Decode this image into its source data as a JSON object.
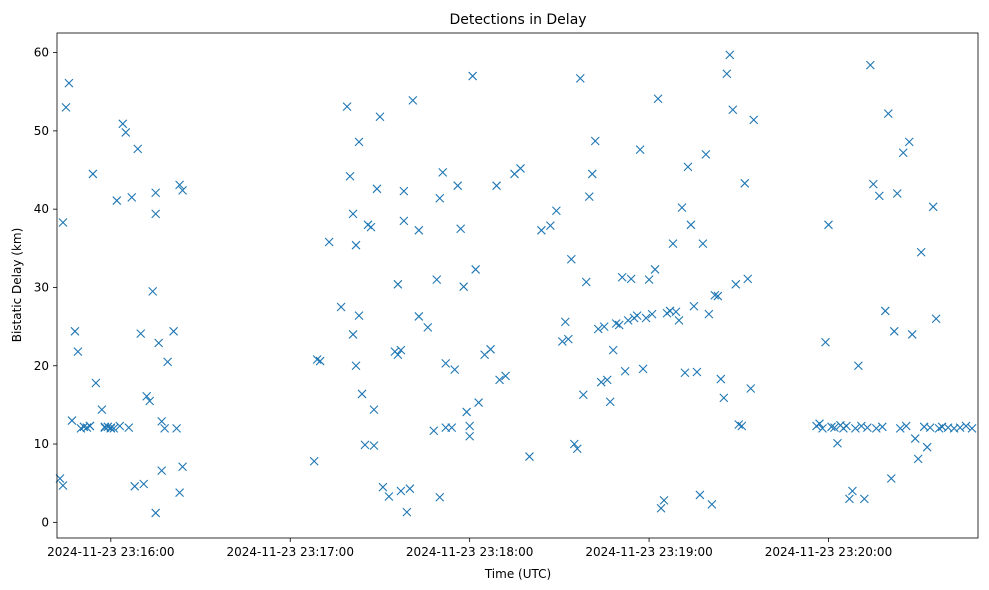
{
  "chart_data": {
    "type": "scatter",
    "title": "Detections in Delay",
    "xlabel": "Time (UTC)",
    "ylabel": "Bistatic Delay (km)",
    "x_ticks": [
      "2024-11-23 23:16:00",
      "2024-11-23 23:17:00",
      "2024-11-23 23:18:00",
      "2024-11-23 23:19:00",
      "2024-11-23 23:20:00"
    ],
    "y_ticks": [
      0,
      10,
      20,
      30,
      40,
      50,
      60
    ],
    "xlim": [
      "2024-11-23 23:15:42",
      "2024-11-23 23:20:50"
    ],
    "ylim": [
      -2,
      62.5
    ],
    "grid": false,
    "marker": "x",
    "color": "#1f77b4",
    "series": [
      {
        "x": [
          "2024-11-23 23:15:43",
          "2024-11-23 23:15:44",
          "2024-11-23 23:15:44",
          "2024-11-23 23:15:45",
          "2024-11-23 23:15:46",
          "2024-11-23 23:15:47",
          "2024-11-23 23:15:48",
          "2024-11-23 23:15:49",
          "2024-11-23 23:15:50",
          "2024-11-23 23:15:51",
          "2024-11-23 23:15:52",
          "2024-11-23 23:15:53",
          "2024-11-23 23:15:53",
          "2024-11-23 23:15:54",
          "2024-11-23 23:15:55",
          "2024-11-23 23:15:57",
          "2024-11-23 23:15:58",
          "2024-11-23 23:15:58",
          "2024-11-23 23:15:59",
          "2024-11-23 23:16:00",
          "2024-11-23 23:16:00",
          "2024-11-23 23:16:01",
          "2024-11-23 23:16:02",
          "2024-11-23 23:16:03",
          "2024-11-23 23:16:04",
          "2024-11-23 23:16:05",
          "2024-11-23 23:16:06",
          "2024-11-23 23:16:07",
          "2024-11-23 23:16:08",
          "2024-11-23 23:16:09",
          "2024-11-23 23:16:10",
          "2024-11-23 23:16:11",
          "2024-11-23 23:16:12",
          "2024-11-23 23:16:13",
          "2024-11-23 23:16:14",
          "2024-11-23 23:16:15",
          "2024-11-23 23:16:15",
          "2024-11-23 23:16:15",
          "2024-11-23 23:16:16",
          "2024-11-23 23:16:17",
          "2024-11-23 23:16:17",
          "2024-11-23 23:16:18",
          "2024-11-23 23:16:19",
          "2024-11-23 23:16:21",
          "2024-11-23 23:16:22",
          "2024-11-23 23:16:23",
          "2024-11-23 23:16:23",
          "2024-11-23 23:16:24",
          "2024-11-23 23:16:24"
        ],
        "y": [
          5.6,
          38.3,
          4.7,
          53.0,
          56.1,
          13.0,
          24.4,
          21.8,
          12.0,
          12.2,
          12.1,
          12.3,
          12.3,
          44.5,
          17.8,
          14.4,
          12.2,
          12.1,
          12.2,
          12.1,
          12.0,
          12.0,
          41.1,
          12.3,
          50.9,
          49.8,
          12.1,
          41.5,
          4.6,
          47.7,
          24.1,
          4.9,
          16.1,
          15.5,
          29.5,
          1.2,
          42.1,
          39.4,
          22.9,
          12.9,
          6.6,
          12.0,
          20.5,
          24.4,
          12.0,
          43.1,
          3.8,
          7.1,
          42.4
        ]
      },
      {
        "x": [
          "2024-11-23 23:17:08",
          "2024-11-23 23:17:09",
          "2024-11-23 23:17:10",
          "2024-11-23 23:17:13",
          "2024-11-23 23:17:17",
          "2024-11-23 23:17:19",
          "2024-11-23 23:17:20",
          "2024-11-23 23:17:21",
          "2024-11-23 23:17:21",
          "2024-11-23 23:17:22",
          "2024-11-23 23:17:22",
          "2024-11-23 23:17:23",
          "2024-11-23 23:17:23",
          "2024-11-23 23:17:24",
          "2024-11-23 23:17:25",
          "2024-11-23 23:17:26",
          "2024-11-23 23:17:27",
          "2024-11-23 23:17:28",
          "2024-11-23 23:17:28",
          "2024-11-23 23:17:29",
          "2024-11-23 23:17:30",
          "2024-11-23 23:17:31",
          "2024-11-23 23:17:33",
          "2024-11-23 23:17:35",
          "2024-11-23 23:17:36",
          "2024-11-23 23:17:36",
          "2024-11-23 23:17:37",
          "2024-11-23 23:17:37",
          "2024-11-23 23:17:38",
          "2024-11-23 23:17:38",
          "2024-11-23 23:17:39",
          "2024-11-23 23:17:40",
          "2024-11-23 23:17:41",
          "2024-11-23 23:17:43",
          "2024-11-23 23:17:43",
          "2024-11-23 23:17:46",
          "2024-11-23 23:17:48",
          "2024-11-23 23:17:49",
          "2024-11-23 23:17:50",
          "2024-11-23 23:17:50",
          "2024-11-23 23:17:51",
          "2024-11-23 23:17:52",
          "2024-11-23 23:17:52",
          "2024-11-23 23:17:54",
          "2024-11-23 23:17:55",
          "2024-11-23 23:17:56",
          "2024-11-23 23:17:57",
          "2024-11-23 23:17:58",
          "2024-11-23 23:17:59",
          "2024-11-23 23:18:00",
          "2024-11-23 23:18:00",
          "2024-11-23 23:18:01",
          "2024-11-23 23:18:02",
          "2024-11-23 23:18:03",
          "2024-11-23 23:18:05",
          "2024-11-23 23:18:07",
          "2024-11-23 23:18:09",
          "2024-11-23 23:18:10",
          "2024-11-23 23:18:12",
          "2024-11-23 23:18:15",
          "2024-11-23 23:18:17",
          "2024-11-23 23:18:20",
          "2024-11-23 23:18:24",
          "2024-11-23 23:18:27",
          "2024-11-23 23:18:29"
        ],
        "y": [
          7.8,
          20.8,
          20.6,
          35.8,
          27.5,
          53.1,
          44.2,
          24.0,
          39.4,
          35.4,
          20.0,
          48.6,
          26.4,
          16.4,
          9.9,
          38.0,
          37.7,
          9.8,
          14.4,
          42.6,
          51.8,
          4.5,
          3.3,
          21.8,
          30.4,
          21.4,
          22.0,
          4.0,
          42.3,
          38.5,
          1.3,
          4.3,
          53.9,
          37.3,
          26.3,
          24.9,
          11.7,
          31.0,
          3.2,
          41.4,
          44.7,
          20.3,
          12.1,
          12.1,
          19.5,
          43.0,
          37.5,
          30.1,
          14.1,
          12.3,
          11.0,
          57.0,
          32.3,
          15.3,
          21.4,
          22.1,
          43.0,
          18.2,
          18.7,
          44.5,
          45.2,
          8.4,
          37.3,
          37.9,
          39.8
        ]
      },
      {
        "x": [
          "2024-11-23 23:18:31",
          "2024-11-23 23:18:32",
          "2024-11-23 23:18:33",
          "2024-11-23 23:18:34",
          "2024-11-23 23:18:35",
          "2024-11-23 23:18:36",
          "2024-11-23 23:18:37",
          "2024-11-23 23:18:38",
          "2024-11-23 23:18:39",
          "2024-11-23 23:18:40",
          "2024-11-23 23:18:41",
          "2024-11-23 23:18:42",
          "2024-11-23 23:18:43",
          "2024-11-23 23:18:44",
          "2024-11-23 23:18:45",
          "2024-11-23 23:18:46",
          "2024-11-23 23:18:47",
          "2024-11-23 23:18:48",
          "2024-11-23 23:18:49",
          "2024-11-23 23:18:50",
          "2024-11-23 23:18:51",
          "2024-11-23 23:18:52",
          "2024-11-23 23:18:53",
          "2024-11-23 23:18:54",
          "2024-11-23 23:18:55",
          "2024-11-23 23:18:56",
          "2024-11-23 23:18:57",
          "2024-11-23 23:18:58",
          "2024-11-23 23:18:59",
          "2024-11-23 23:19:00",
          "2024-11-23 23:19:01",
          "2024-11-23 23:19:02",
          "2024-11-23 23:19:03",
          "2024-11-23 23:19:04",
          "2024-11-23 23:19:05",
          "2024-11-23 23:19:06",
          "2024-11-23 23:19:07",
          "2024-11-23 23:19:08",
          "2024-11-23 23:19:09",
          "2024-11-23 23:19:10",
          "2024-11-23 23:19:11",
          "2024-11-23 23:19:12",
          "2024-11-23 23:19:13",
          "2024-11-23 23:19:14",
          "2024-11-23 23:19:15",
          "2024-11-23 23:19:16",
          "2024-11-23 23:19:17",
          "2024-11-23 23:19:18",
          "2024-11-23 23:19:19",
          "2024-11-23 23:19:20",
          "2024-11-23 23:19:21",
          "2024-11-23 23:19:22",
          "2024-11-23 23:19:23",
          "2024-11-23 23:19:24",
          "2024-11-23 23:19:25",
          "2024-11-23 23:19:26",
          "2024-11-23 23:19:27",
          "2024-11-23 23:19:28",
          "2024-11-23 23:19:29",
          "2024-11-23 23:19:30",
          "2024-11-23 23:19:31",
          "2024-11-23 23:19:32",
          "2024-11-23 23:19:33",
          "2024-11-23 23:19:34",
          "2024-11-23 23:19:35"
        ],
        "y": [
          23.1,
          25.6,
          23.4,
          33.6,
          10.0,
          9.4,
          56.7,
          16.3,
          30.7,
          41.6,
          44.5,
          48.7,
          24.7,
          17.9,
          25.0,
          18.2,
          15.4,
          22.0,
          25.4,
          25.2,
          31.3,
          19.3,
          25.8,
          31.1,
          26.1,
          26.4,
          47.6,
          19.6,
          26.1,
          31.0,
          26.6,
          32.3,
          54.1,
          1.8,
          2.8,
          26.7,
          27.0,
          35.6,
          26.9,
          25.8,
          40.2,
          19.1,
          45.4,
          38.0,
          27.6,
          19.2,
          3.5,
          35.6,
          47.0,
          26.6,
          2.3,
          29.0,
          28.9,
          18.3,
          15.9,
          57.3,
          59.7,
          52.7,
          30.4,
          12.5,
          12.3,
          43.3,
          31.1,
          17.1,
          51.4
        ]
      },
      {
        "x": [
          "2024-11-23 23:19:56",
          "2024-11-23 23:19:57",
          "2024-11-23 23:19:58",
          "2024-11-23 23:19:59",
          "2024-11-23 23:20:00",
          "2024-11-23 23:20:01",
          "2024-11-23 23:20:02",
          "2024-11-23 23:20:03",
          "2024-11-23 23:20:04",
          "2024-11-23 23:20:05",
          "2024-11-23 23:20:06",
          "2024-11-23 23:20:07",
          "2024-11-23 23:20:08",
          "2024-11-23 23:20:09",
          "2024-11-23 23:20:10",
          "2024-11-23 23:20:11",
          "2024-11-23 23:20:12",
          "2024-11-23 23:20:13",
          "2024-11-23 23:20:14",
          "2024-11-23 23:20:15",
          "2024-11-23 23:20:16",
          "2024-11-23 23:20:17",
          "2024-11-23 23:20:18",
          "2024-11-23 23:20:19",
          "2024-11-23 23:20:20",
          "2024-11-23 23:20:21",
          "2024-11-23 23:20:22",
          "2024-11-23 23:20:23",
          "2024-11-23 23:20:24",
          "2024-11-23 23:20:25",
          "2024-11-23 23:20:26",
          "2024-11-23 23:20:27",
          "2024-11-23 23:20:28",
          "2024-11-23 23:20:29",
          "2024-11-23 23:20:30",
          "2024-11-23 23:20:31",
          "2024-11-23 23:20:32",
          "2024-11-23 23:20:33",
          "2024-11-23 23:20:34",
          "2024-11-23 23:20:35",
          "2024-11-23 23:20:36",
          "2024-11-23 23:20:37",
          "2024-11-23 23:20:38",
          "2024-11-23 23:20:40",
          "2024-11-23 23:20:42",
          "2024-11-23 23:20:44",
          "2024-11-23 23:20:46",
          "2024-11-23 23:20:48"
        ],
        "y": [
          12.3,
          12.6,
          12.0,
          23.0,
          38.0,
          12.2,
          12.1,
          10.1,
          12.4,
          12.0,
          12.3,
          3.0,
          4.0,
          12.0,
          20.0,
          12.3,
          3.0,
          12.1,
          58.4,
          43.2,
          12.0,
          41.7,
          12.2,
          27.0,
          52.2,
          5.6,
          24.4,
          42.0,
          12.0,
          47.2,
          12.3,
          48.6,
          24.0,
          10.7,
          8.1,
          34.5,
          12.2,
          9.6,
          12.1,
          40.3,
          26.0,
          12.0,
          12.2,
          12.1,
          12.0,
          12.1,
          12.3,
          12.0
        ]
      }
    ]
  }
}
